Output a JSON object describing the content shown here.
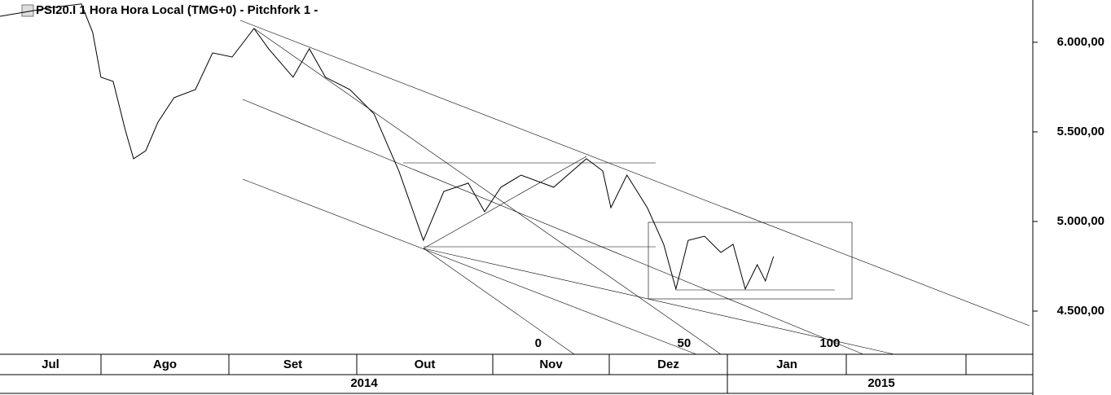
{
  "chart_data": {
    "type": "line",
    "title": "PSI20.I 1 Hora Hora Local (TMG+0)  -  Pitchfork 1  -",
    "xlim": [
      -184.6,
      169.6
    ],
    "xticks": [
      0,
      50,
      100
    ],
    "ylim": [
      4259,
      6236
    ],
    "yticks": [
      {
        "value": 4500,
        "label": "4.500,00"
      },
      {
        "value": 5000,
        "label": "5.000,00"
      },
      {
        "value": 5500,
        "label": "5.500,00"
      },
      {
        "value": 6000,
        "label": "6.000,00"
      }
    ],
    "months": [
      "Jul",
      "Ago",
      "Set",
      "Out",
      "Nov",
      "Dez",
      "Jan"
    ],
    "years": [
      "2014",
      "2015"
    ],
    "color": "#000000",
    "x": [
      -184.6,
      -176.3,
      -168,
      -156.7,
      -152.8,
      -150,
      -145.8,
      -141.6,
      -138.8,
      -134.6,
      -130.4,
      -124.9,
      -117.6,
      -111.7,
      -105,
      -97.5,
      -92.5,
      -84.1,
      -78.5,
      -73,
      -64.6,
      -56.3,
      -47.8,
      -39.4,
      -32.4,
      -24,
      -18.4,
      -12.8,
      -5.9,
      5.3,
      16.5,
      22.1,
      24.9,
      30.4,
      37.4,
      43,
      47.2,
      51.4,
      57,
      62.6,
      66.8,
      71,
      75.1,
      77.9,
      80.7
    ],
    "values": [
      6145,
      6168,
      6191,
      6214,
      6055,
      5805,
      5782,
      5509,
      5350,
      5395,
      5555,
      5691,
      5736,
      5941,
      5918,
      6077,
      5964,
      5805,
      5964,
      5805,
      5736,
      5600,
      5282,
      4895,
      5168,
      5214,
      5055,
      5191,
      5259,
      5191,
      5350,
      5282,
      5077,
      5259,
      5077,
      4873,
      4623,
      4895,
      4918,
      4827,
      4873,
      4623,
      4759,
      4668,
      4805
    ]
  }
}
